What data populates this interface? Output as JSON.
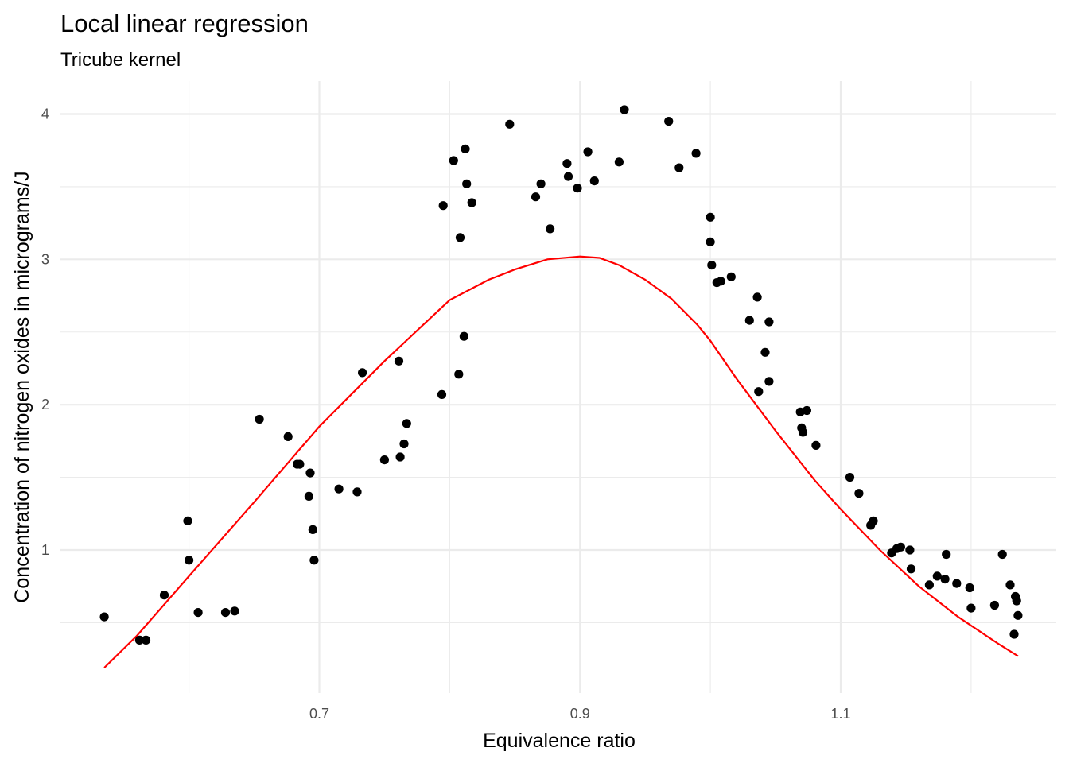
{
  "chart_data": {
    "type": "scatter",
    "title": "Local linear regression",
    "subtitle": "Tricube kernel",
    "xlabel": "Equivalence ratio",
    "ylabel": "Concentration of nitrogen oxides in micrograms/J",
    "xlim": [
      0.535,
      1.236
    ],
    "ylim": [
      0.1,
      4.1
    ],
    "x_ticks": [
      0.7,
      0.9,
      1.1
    ],
    "x_tick_labels": [
      "0.7",
      "0.9",
      "1.1"
    ],
    "x_minor_ticks": [
      0.6,
      0.8,
      1.0,
      1.2
    ],
    "y_ticks": [
      1,
      2,
      3,
      4
    ],
    "y_tick_labels": [
      "1",
      "2",
      "3",
      "4"
    ],
    "y_minor_ticks": [
      0.5,
      1.5,
      2.5,
      3.5
    ],
    "grid": true,
    "colors": {
      "points": "#000000",
      "fit_line": "#ff0000",
      "grid": "#ebebeb"
    },
    "points": [
      [
        0.535,
        0.54
      ],
      [
        0.562,
        0.38
      ],
      [
        0.567,
        0.38
      ],
      [
        0.581,
        0.69
      ],
      [
        0.599,
        1.2
      ],
      [
        0.6,
        0.93
      ],
      [
        0.607,
        0.57
      ],
      [
        0.628,
        0.57
      ],
      [
        0.635,
        0.58
      ],
      [
        0.654,
        1.9
      ],
      [
        0.676,
        1.78
      ],
      [
        0.683,
        1.59
      ],
      [
        0.685,
        1.59
      ],
      [
        0.692,
        1.37
      ],
      [
        0.693,
        1.53
      ],
      [
        0.695,
        1.14
      ],
      [
        0.696,
        0.93
      ],
      [
        0.715,
        1.42
      ],
      [
        0.729,
        1.4
      ],
      [
        0.733,
        2.22
      ],
      [
        0.75,
        1.62
      ],
      [
        0.761,
        2.3
      ],
      [
        0.762,
        1.64
      ],
      [
        0.765,
        1.73
      ],
      [
        0.767,
        1.87
      ],
      [
        0.794,
        2.07
      ],
      [
        0.795,
        3.37
      ],
      [
        0.803,
        3.68
      ],
      [
        0.807,
        2.21
      ],
      [
        0.808,
        3.15
      ],
      [
        0.811,
        2.47
      ],
      [
        0.812,
        3.76
      ],
      [
        0.813,
        3.52
      ],
      [
        0.817,
        3.39
      ],
      [
        0.846,
        3.93
      ],
      [
        0.866,
        3.43
      ],
      [
        0.87,
        3.52
      ],
      [
        0.877,
        3.21
      ],
      [
        0.89,
        3.66
      ],
      [
        0.891,
        3.57
      ],
      [
        0.898,
        3.49
      ],
      [
        0.906,
        3.74
      ],
      [
        0.911,
        3.54
      ],
      [
        0.93,
        3.67
      ],
      [
        0.934,
        4.03
      ],
      [
        0.968,
        3.95
      ],
      [
        0.976,
        3.63
      ],
      [
        0.989,
        3.73
      ],
      [
        1.0,
        3.29
      ],
      [
        1.0,
        3.12
      ],
      [
        1.001,
        2.96
      ],
      [
        1.005,
        2.84
      ],
      [
        1.008,
        2.85
      ],
      [
        1.016,
        2.88
      ],
      [
        1.03,
        2.58
      ],
      [
        1.036,
        2.74
      ],
      [
        1.037,
        2.09
      ],
      [
        1.042,
        2.36
      ],
      [
        1.045,
        2.57
      ],
      [
        1.045,
        2.16
      ],
      [
        1.069,
        1.95
      ],
      [
        1.07,
        1.84
      ],
      [
        1.071,
        1.81
      ],
      [
        1.074,
        1.96
      ],
      [
        1.081,
        1.72
      ],
      [
        1.107,
        1.5
      ],
      [
        1.114,
        1.39
      ],
      [
        1.123,
        1.17
      ],
      [
        1.125,
        1.2
      ],
      [
        1.139,
        0.98
      ],
      [
        1.143,
        1.01
      ],
      [
        1.146,
        1.02
      ],
      [
        1.153,
        1.0
      ],
      [
        1.154,
        0.87
      ],
      [
        1.168,
        0.76
      ],
      [
        1.174,
        0.82
      ],
      [
        1.18,
        0.8
      ],
      [
        1.181,
        0.97
      ],
      [
        1.189,
        0.77
      ],
      [
        1.199,
        0.74
      ],
      [
        1.2,
        0.6
      ],
      [
        1.218,
        0.62
      ],
      [
        1.224,
        0.97
      ],
      [
        1.23,
        0.76
      ],
      [
        1.233,
        0.42
      ],
      [
        1.234,
        0.68
      ],
      [
        1.235,
        0.65
      ],
      [
        1.236,
        0.55
      ]
    ],
    "fit_line": [
      [
        0.535,
        0.19
      ],
      [
        0.56,
        0.41
      ],
      [
        0.6,
        0.82
      ],
      [
        0.65,
        1.33
      ],
      [
        0.7,
        1.85
      ],
      [
        0.75,
        2.3
      ],
      [
        0.8,
        2.72
      ],
      [
        0.83,
        2.86
      ],
      [
        0.85,
        2.93
      ],
      [
        0.875,
        3.0
      ],
      [
        0.9,
        3.02
      ],
      [
        0.915,
        3.01
      ],
      [
        0.93,
        2.96
      ],
      [
        0.95,
        2.86
      ],
      [
        0.97,
        2.73
      ],
      [
        0.99,
        2.55
      ],
      [
        1.0,
        2.44
      ],
      [
        1.02,
        2.18
      ],
      [
        1.05,
        1.82
      ],
      [
        1.08,
        1.48
      ],
      [
        1.1,
        1.28
      ],
      [
        1.13,
        1.0
      ],
      [
        1.16,
        0.75
      ],
      [
        1.19,
        0.54
      ],
      [
        1.22,
        0.36
      ],
      [
        1.236,
        0.27
      ]
    ]
  }
}
